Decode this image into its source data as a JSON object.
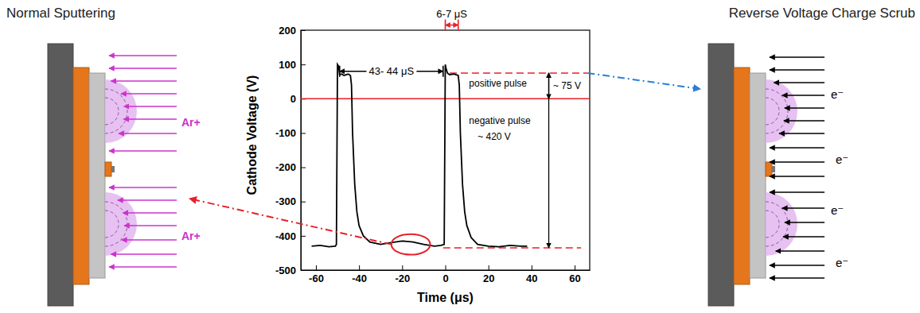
{
  "chart_data": {
    "type": "line",
    "x_label": "Time (μs)",
    "y_label": "Cathode Voltage (V)",
    "x": [
      -62,
      -58,
      -54,
      -51,
      -50.5,
      -50,
      -49.5,
      -49,
      -48,
      -47,
      -46,
      -45,
      -44,
      -43.5,
      -43,
      -42,
      -41,
      -40,
      -38,
      -35,
      -30,
      -25,
      -20,
      -15,
      -10,
      -5,
      -2,
      -0.5,
      0,
      0.3,
      1,
      2,
      4,
      6,
      6.5,
      7,
      8,
      9,
      10,
      12,
      15,
      20,
      25,
      30,
      35,
      38
    ],
    "values": [
      -430,
      -428,
      -432,
      -430,
      -425,
      100,
      95,
      70,
      72,
      68,
      70,
      72,
      68,
      40,
      -100,
      -250,
      -330,
      -370,
      -400,
      -418,
      -425,
      -420,
      -415,
      -418,
      -425,
      -430,
      -428,
      -425,
      100,
      90,
      75,
      70,
      72,
      68,
      40,
      -100,
      -250,
      -330,
      -370,
      -405,
      -425,
      -430,
      -432,
      -428,
      -430,
      -430
    ],
    "color": "#000000",
    "xlim": [
      -67,
      67
    ],
    "xticks": [
      -60,
      -40,
      -20,
      0,
      20,
      40,
      60
    ],
    "ylim": [
      -500,
      200
    ],
    "yticks": [
      -500,
      -400,
      -300,
      -200,
      -100,
      0,
      100,
      200
    ],
    "grid": false,
    "reference_lines": [
      {
        "y": 0,
        "color": "#e8202a",
        "line_style": "solid"
      },
      {
        "y": 75,
        "x": [
          2,
          66
        ],
        "color": "#e8202a",
        "line_style": "dashed"
      },
      {
        "y": -435,
        "x": [
          -1,
          63
        ],
        "color": "#e8202a",
        "line_style": "dashed"
      }
    ],
    "spans": [
      {
        "x": [
          -49,
          -1
        ],
        "y": 80,
        "label": "43- 44 μS",
        "color": "#000000"
      },
      {
        "x": [
          0,
          6
        ],
        "y": 215,
        "label": "6-7 μS",
        "color": "#e8202a"
      }
    ],
    "vspans": [
      {
        "x": 48,
        "y": [
          0,
          75
        ]
      },
      {
        "x": 48,
        "y": [
          75,
          -435
        ]
      }
    ],
    "annotations": [
      {
        "text": "positive pulse",
        "x": 11,
        "y": 45
      },
      {
        "text": "~ 75 V",
        "x": 50,
        "y": 38
      },
      {
        "text": "negative pulse",
        "x": 11,
        "y": -65
      },
      {
        "text": "~ 420 V",
        "x": 15,
        "y": -110
      }
    ],
    "highlight": {
      "x": -16,
      "y": -425,
      "rx": 9,
      "ry": 30,
      "color": "#e8202a"
    }
  },
  "left_panel": {
    "title": "Normal Sputtering",
    "labels": [
      "Ar+",
      "Ar+"
    ],
    "color": "#cc33cc"
  },
  "right_panel": {
    "title": "Reverse Voltage Charge Scrub",
    "labels": [
      "e⁻",
      "e⁻",
      "e⁻",
      "e⁻"
    ],
    "color": "#000000"
  }
}
